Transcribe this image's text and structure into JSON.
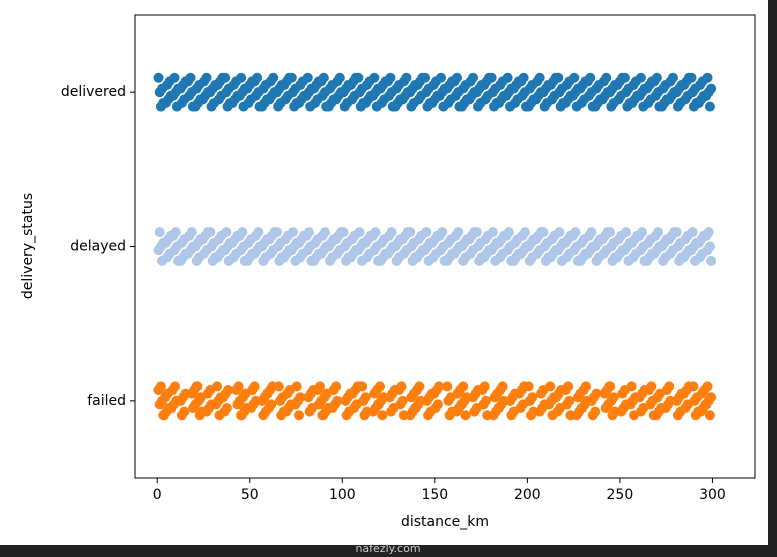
{
  "chart_data": {
    "type": "strip",
    "xlabel": "distance_km",
    "ylabel": "delivery_status",
    "categories": [
      "delivered",
      "delayed",
      "failed"
    ],
    "xlim": [
      -12,
      323
    ],
    "xticks": [
      0,
      50,
      100,
      150,
      200,
      250,
      300
    ],
    "strips": [
      {
        "color": "#1f77b4",
        "values": [
          2,
          6,
          10,
          14,
          18,
          22,
          26,
          30,
          34,
          38,
          42,
          46,
          50,
          54,
          58,
          62,
          66,
          70,
          74,
          78,
          82,
          86,
          90,
          94,
          98,
          102,
          106,
          110,
          114,
          118,
          122,
          126,
          130,
          134,
          138,
          142,
          146,
          150,
          154,
          158,
          162,
          166,
          170,
          174,
          178,
          182,
          186,
          190,
          194,
          198,
          202,
          206,
          210,
          214,
          218,
          222,
          226,
          230,
          234,
          238,
          242,
          246,
          250,
          254,
          258,
          262,
          266,
          270,
          274,
          278,
          282,
          286,
          290,
          294,
          298
        ]
      },
      {
        "color": "#aec7e8",
        "values": [
          2,
          6,
          10,
          14,
          18,
          22,
          26,
          30,
          34,
          38,
          42,
          46,
          50,
          54,
          58,
          62,
          66,
          70,
          74,
          78,
          82,
          86,
          90,
          94,
          98,
          102,
          106,
          110,
          114,
          118,
          122,
          126,
          130,
          134,
          138,
          142,
          146,
          150,
          154,
          158,
          162,
          166,
          170,
          174,
          178,
          182,
          186,
          190,
          194,
          198,
          202,
          206,
          210,
          214,
          218,
          222,
          226,
          230,
          234,
          238,
          242,
          246,
          250,
          254,
          258,
          262,
          266,
          270,
          274,
          278,
          282,
          286,
          290,
          294,
          298
        ]
      },
      {
        "color": "#ff7f0e",
        "values": [
          2,
          5,
          9,
          14,
          20,
          23,
          28,
          33,
          37,
          44,
          47,
          52,
          58,
          61,
          67,
          71,
          76,
          83,
          88,
          91,
          96,
          103,
          107,
          112,
          118,
          121,
          127,
          132,
          138,
          141,
          147,
          151,
          158,
          163,
          166,
          172,
          177,
          183,
          186,
          192,
          197,
          202,
          208,
          213,
          217,
          222,
          228,
          231,
          236,
          243,
          246,
          252,
          257,
          262,
          267,
          271,
          276,
          282,
          286,
          291,
          295,
          298
        ]
      }
    ],
    "watermark": "nafezly.com"
  }
}
